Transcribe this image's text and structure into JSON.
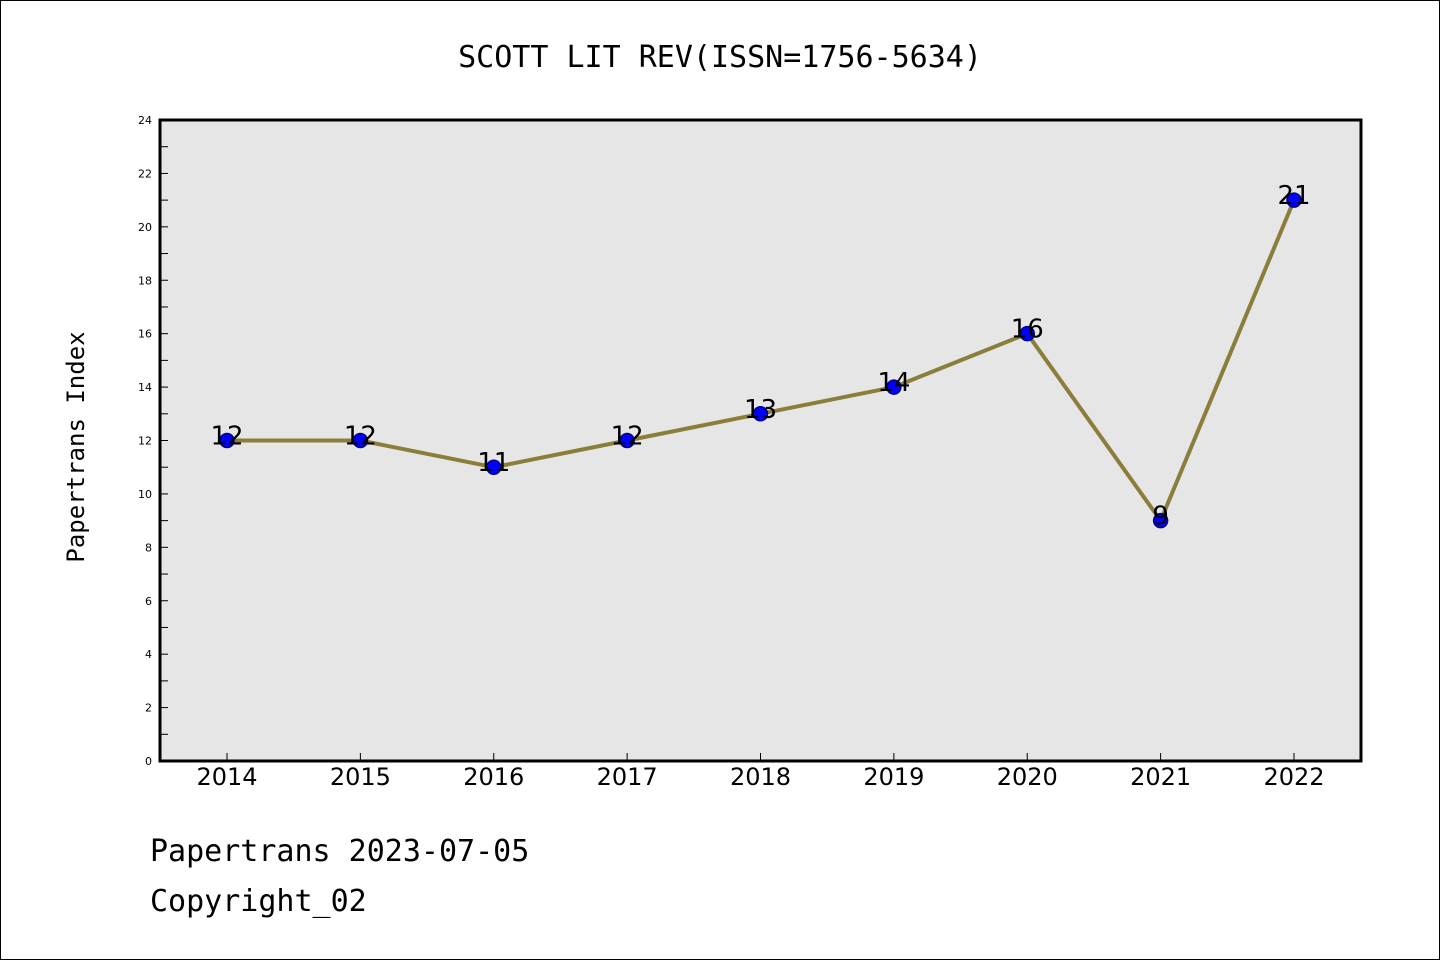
{
  "chart_data": {
    "type": "line",
    "title": "SCOTT LIT REV(ISSN=1756-5634)",
    "xlabel": "",
    "ylabel": "Papertrans Index",
    "categories": [
      "2014",
      "2015",
      "2016",
      "2017",
      "2018",
      "2019",
      "2020",
      "2021",
      "2022"
    ],
    "series": [
      {
        "values": [
          12,
          12,
          11,
          12,
          13,
          14,
          16,
          9,
          21
        ]
      }
    ],
    "data_labels": [
      "12",
      "12",
      "11",
      "12",
      "13",
      "14",
      "16",
      "9",
      "21"
    ],
    "ylim": [
      0,
      24
    ],
    "yticks": [
      "0",
      "2",
      "4",
      "6",
      "8",
      "10",
      "12",
      "14",
      "16",
      "18",
      "20",
      "22",
      "24"
    ],
    "grid": false,
    "legend": "none",
    "colors": {
      "line": "#8B7D3A",
      "marker_fill": "#0000FF",
      "marker_edge": "#000080",
      "plot_background": "#E6E6E6",
      "axes": "#000000"
    }
  },
  "footer": {
    "date_line": "Papertrans 2023-07-05",
    "copyright_line": "Copyright_02"
  }
}
